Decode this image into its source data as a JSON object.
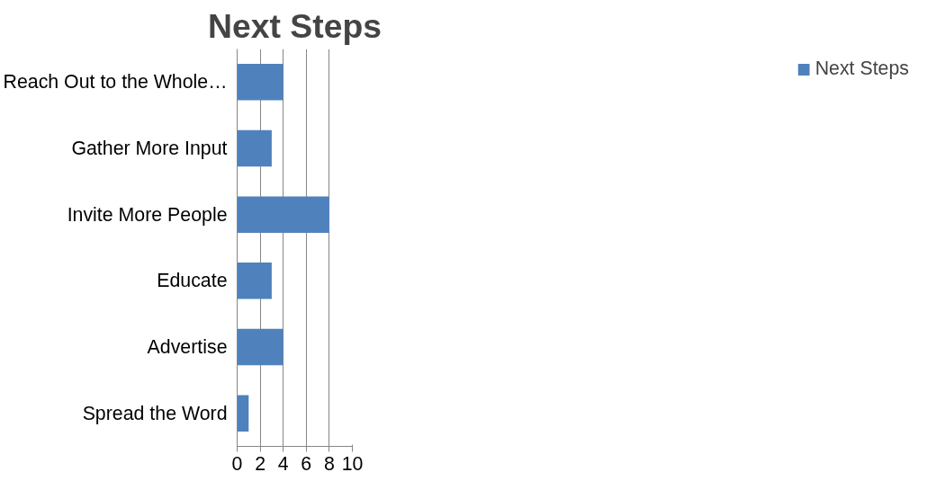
{
  "chart_data": {
    "type": "bar",
    "orientation": "horizontal",
    "title": "Next Steps",
    "categories": [
      "Reach Out to the Whole…",
      "Gather More Input",
      "Invite More People",
      "Educate",
      "Advertise",
      "Spread the Word"
    ],
    "series": [
      {
        "name": "Next Steps",
        "color": "#4f81bd",
        "values": [
          4,
          3,
          8,
          3,
          4,
          1
        ]
      }
    ],
    "xlim": [
      0,
      10
    ],
    "xticks": [
      0,
      2,
      4,
      6,
      8,
      10
    ],
    "grid": "x",
    "legend": "right"
  }
}
